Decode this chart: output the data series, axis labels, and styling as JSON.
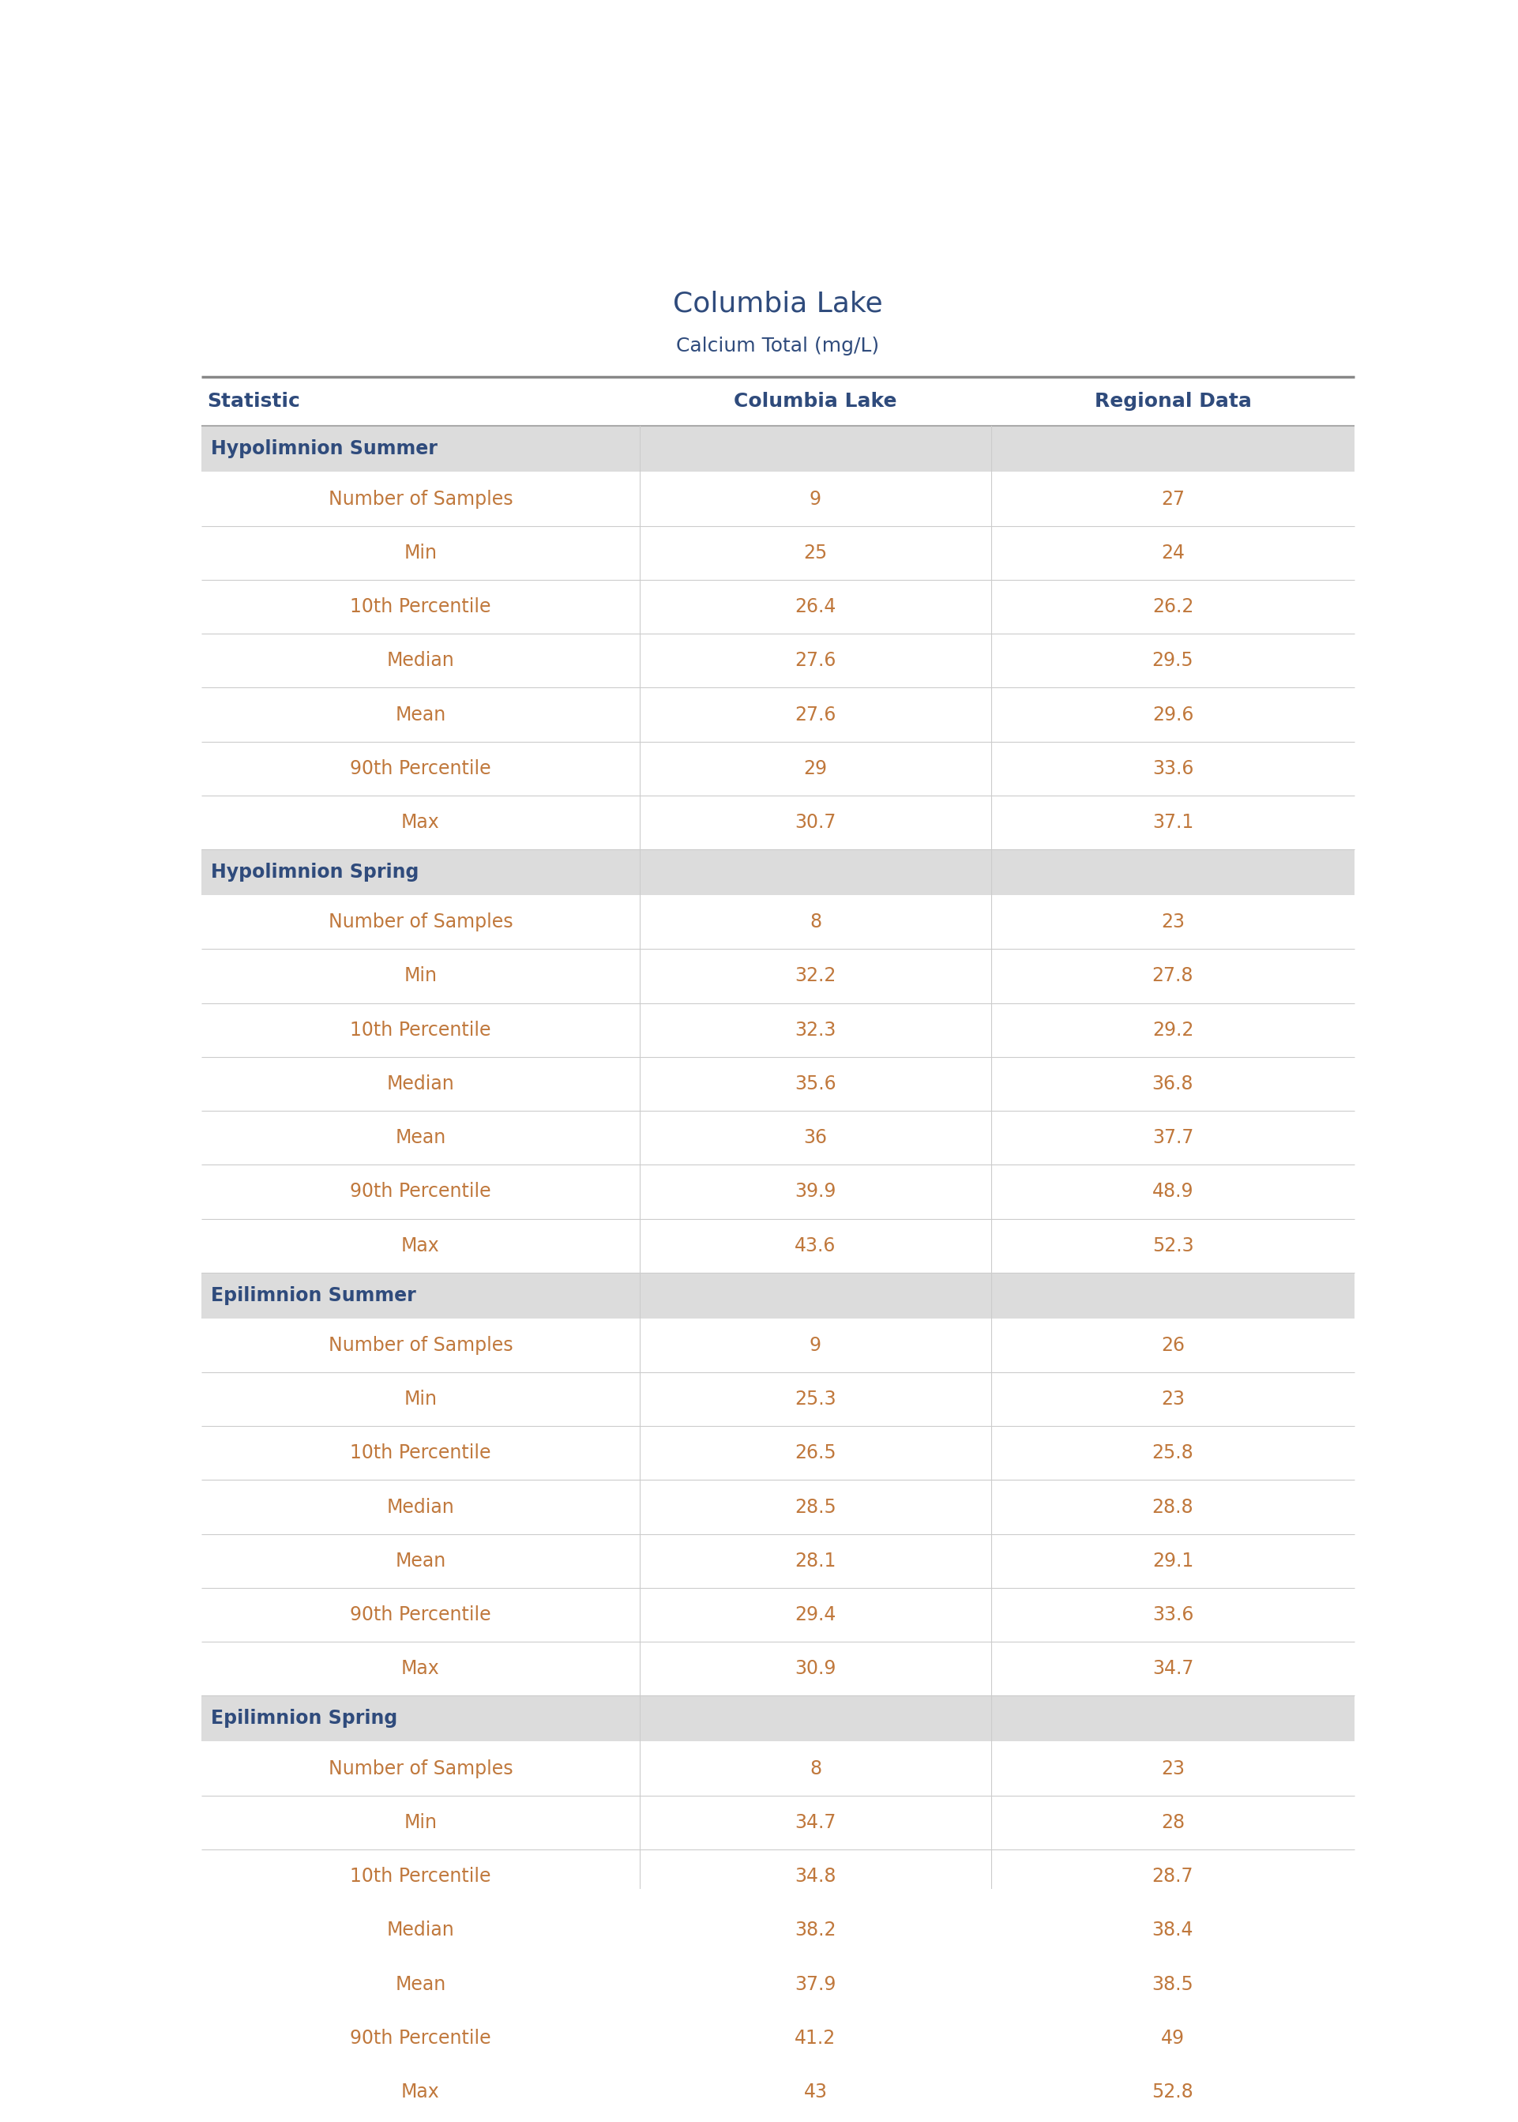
{
  "title": "Columbia Lake",
  "subtitle": "Calcium Total (mg/L)",
  "col_headers": [
    "Statistic",
    "Columbia Lake",
    "Regional Data"
  ],
  "sections": [
    {
      "name": "Hypolimnion Summer",
      "rows": [
        [
          "Number of Samples",
          "9",
          "27"
        ],
        [
          "Min",
          "25",
          "24"
        ],
        [
          "10th Percentile",
          "26.4",
          "26.2"
        ],
        [
          "Median",
          "27.6",
          "29.5"
        ],
        [
          "Mean",
          "27.6",
          "29.6"
        ],
        [
          "90th Percentile",
          "29",
          "33.6"
        ],
        [
          "Max",
          "30.7",
          "37.1"
        ]
      ]
    },
    {
      "name": "Hypolimnion Spring",
      "rows": [
        [
          "Number of Samples",
          "8",
          "23"
        ],
        [
          "Min",
          "32.2",
          "27.8"
        ],
        [
          "10th Percentile",
          "32.3",
          "29.2"
        ],
        [
          "Median",
          "35.6",
          "36.8"
        ],
        [
          "Mean",
          "36",
          "37.7"
        ],
        [
          "90th Percentile",
          "39.9",
          "48.9"
        ],
        [
          "Max",
          "43.6",
          "52.3"
        ]
      ]
    },
    {
      "name": "Epilimnion Summer",
      "rows": [
        [
          "Number of Samples",
          "9",
          "26"
        ],
        [
          "Min",
          "25.3",
          "23"
        ],
        [
          "10th Percentile",
          "26.5",
          "25.8"
        ],
        [
          "Median",
          "28.5",
          "28.8"
        ],
        [
          "Mean",
          "28.1",
          "29.1"
        ],
        [
          "90th Percentile",
          "29.4",
          "33.6"
        ],
        [
          "Max",
          "30.9",
          "34.7"
        ]
      ]
    },
    {
      "name": "Epilimnion Spring",
      "rows": [
        [
          "Number of Samples",
          "8",
          "23"
        ],
        [
          "Min",
          "34.7",
          "28"
        ],
        [
          "10th Percentile",
          "34.8",
          "28.7"
        ],
        [
          "Median",
          "38.2",
          "38.4"
        ],
        [
          "Mean",
          "37.9",
          "38.5"
        ],
        [
          "90th Percentile",
          "41.2",
          "49"
        ],
        [
          "Max",
          "43",
          "52.8"
        ]
      ]
    }
  ],
  "title_color": "#2F4B7C",
  "subtitle_color": "#2F4B7C",
  "header_text_color": "#2F4B7C",
  "section_header_bg": "#DCDCDC",
  "section_header_text_color": "#2F4B7C",
  "data_text_color": "#C0783C",
  "row_line_color": "#CCCCCC",
  "col_divider_color": "#CCCCCC",
  "top_line_color": "#888888",
  "header_line_color": "#AAAAAA",
  "background_color": "#FFFFFF",
  "title_fontsize": 26,
  "subtitle_fontsize": 18,
  "header_fontsize": 18,
  "section_fontsize": 17,
  "data_fontsize": 17
}
